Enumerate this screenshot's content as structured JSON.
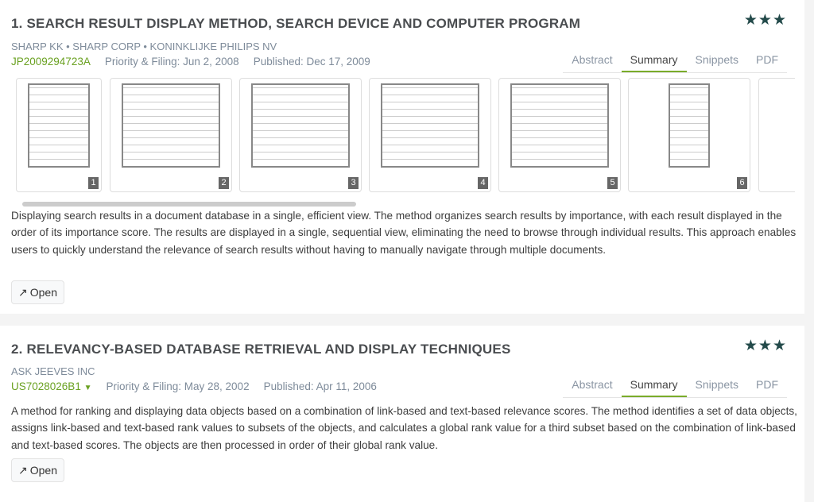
{
  "results": [
    {
      "title": "1. SEARCH RESULT DISPLAY METHOD, SEARCH DEVICE AND COMPUTER PROGRAM",
      "stars": "★★★",
      "assignees": "SHARP KK • SHARP CORP • KONINKLIJKE PHILIPS NV",
      "id": "JP2009294723A",
      "priority": "Priority & Filing: Jun 2, 2008",
      "published": "Published: Dec 17, 2009",
      "tabs": [
        "Abstract",
        "Summary",
        "Snippets",
        "PDF"
      ],
      "active_tab": "Summary",
      "thumbs": [
        "1",
        "2",
        "3",
        "4",
        "5",
        "6"
      ],
      "summary": "Displaying search results in a document database in a single, efficient view. The method organizes search results by importance, with each result displayed in the order of its importance score. The results are displayed in a single, sequential view, eliminating the need to browse through individual results. This approach enables users to quickly understand the relevance of search results without having to manually navigate through multiple documents.",
      "open": "Open"
    },
    {
      "title": "2. RELEVANCY-BASED DATABASE RETRIEVAL AND DISPLAY TECHNIQUES",
      "stars": "★★★",
      "assignees": "ASK JEEVES INC",
      "id": "US7028026B1",
      "priority": "Priority & Filing: May 28, 2002",
      "published": "Published: Apr 11, 2006",
      "tabs": [
        "Abstract",
        "Summary",
        "Snippets",
        "PDF"
      ],
      "active_tab": "Summary",
      "summary": "A method for ranking and displaying data objects based on a combination of link-based and text-based relevance scores. The method identifies a set of data objects, assigns link-based and text-based rank values to subsets of the objects, and calculates a global rank value for a third subset based on the combination of link-based and text-based scores. The objects are then processed in order of their global rank value.",
      "open": "Open"
    }
  ]
}
